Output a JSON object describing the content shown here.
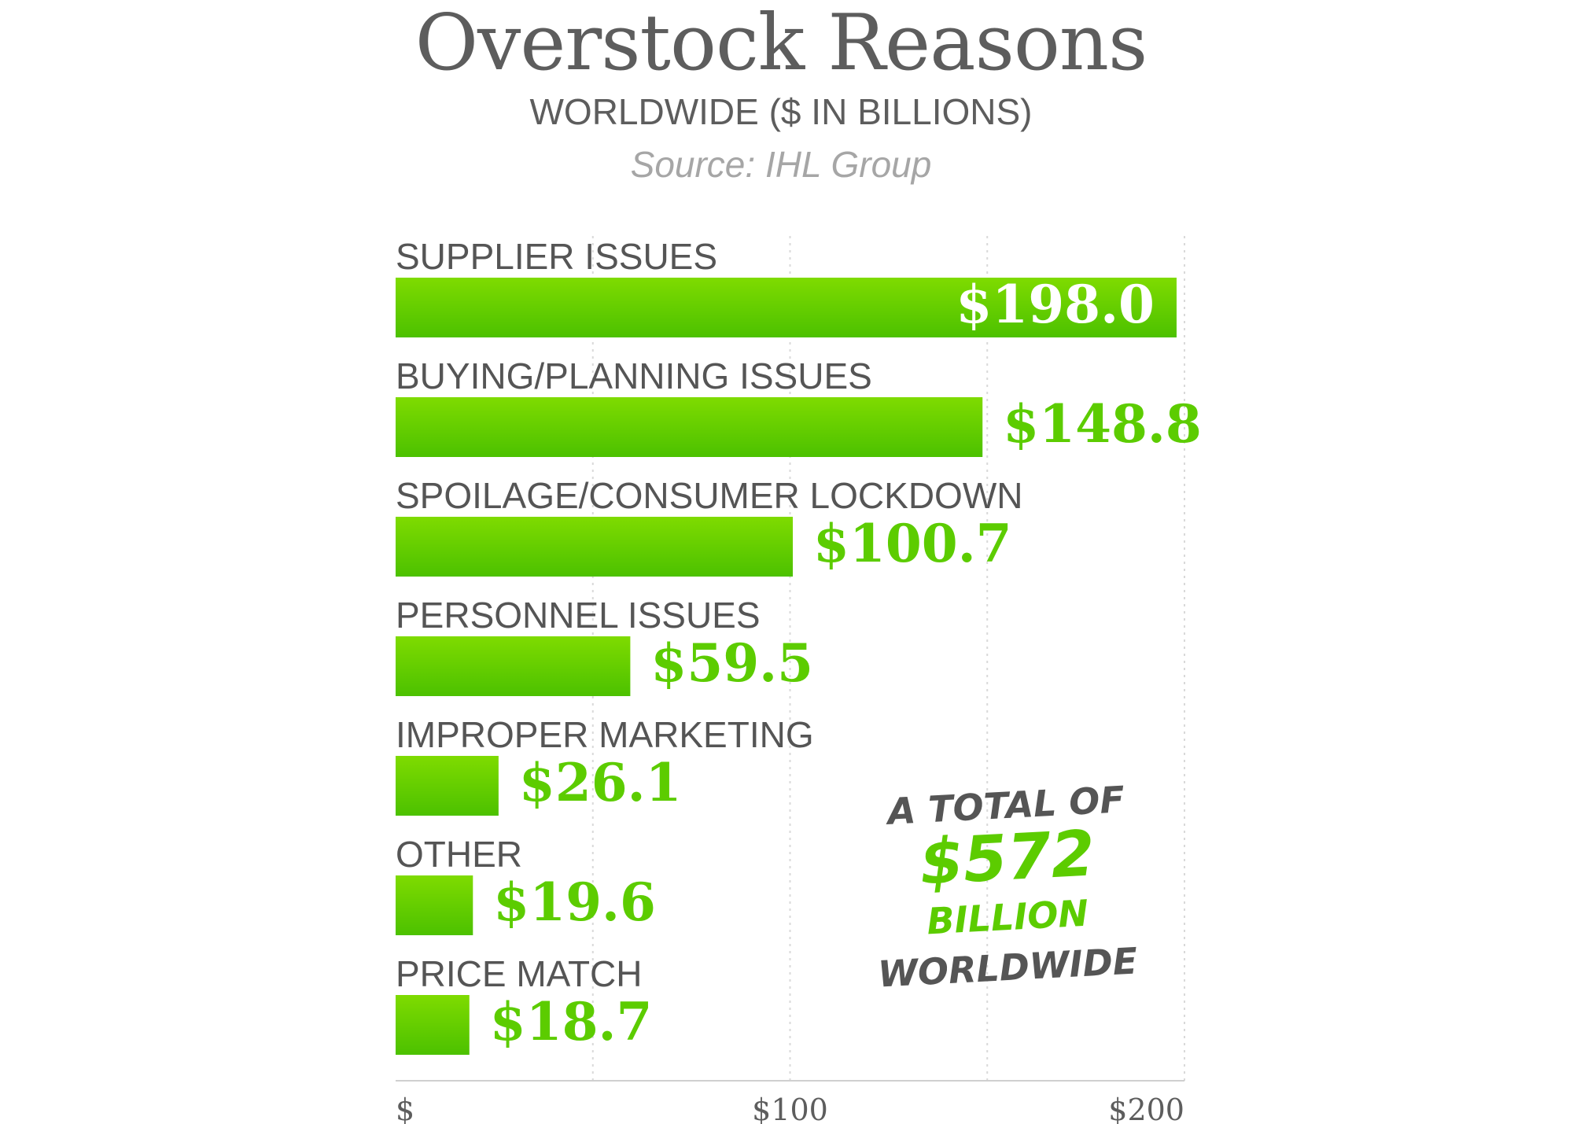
{
  "title": "Overstock Reasons",
  "subtitle": "WORLDWIDE ($ IN BILLIONS)",
  "source": "Source: IHL Group",
  "colors": {
    "bar_top": "#7fdb00",
    "bar_bottom": "#4cc100",
    "value_text": "#5ccc00",
    "annotation_gray": "#555555",
    "annotation_green": "#5ccc00"
  },
  "annotation": {
    "line1": "A TOTAL OF",
    "line2": "$572",
    "line3": "BILLION",
    "line4": "WORLDWIDE"
  },
  "chart_data": {
    "type": "bar",
    "orientation": "horizontal",
    "categories": [
      "SUPPLIER ISSUES",
      "BUYING/PLANNING ISSUES",
      "SPOILAGE/CONSUMER LOCKDOWN",
      "PERSONNEL ISSUES",
      "IMPROPER MARKETING",
      "OTHER",
      "PRICE MATCH"
    ],
    "values": [
      198.0,
      148.8,
      100.7,
      59.5,
      26.1,
      19.6,
      18.7
    ],
    "value_labels": [
      "$198.0",
      "$148.8",
      "$100.7",
      "$59.5",
      "$26.1",
      "$19.6",
      "$18.7"
    ],
    "xlim": [
      0,
      200
    ],
    "ticks": [
      {
        "value": 0,
        "label": "$"
      },
      {
        "value": 100,
        "label": "$100"
      },
      {
        "value": 200,
        "label": "$200"
      }
    ],
    "gridlines": [
      50,
      100,
      150,
      200
    ],
    "grid": true
  }
}
